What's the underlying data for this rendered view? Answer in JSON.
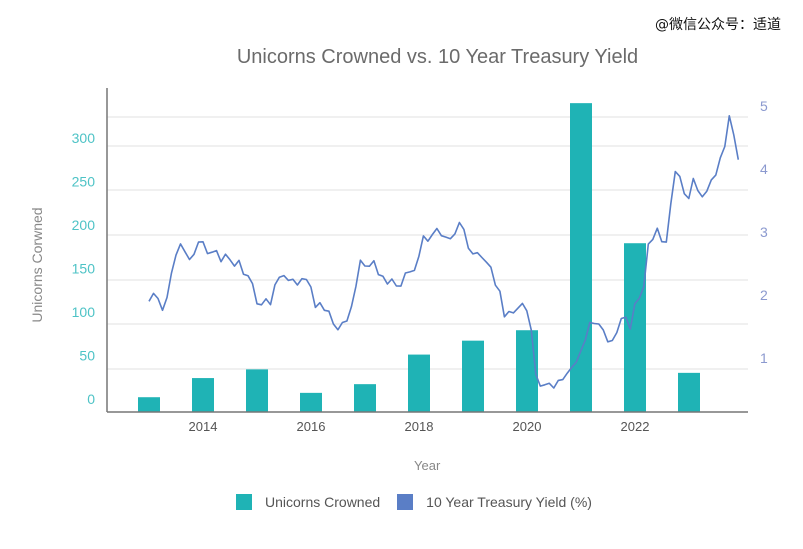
{
  "watermark": "@微信公众号：适道",
  "chart_data": {
    "type": "bar+line",
    "title": "Unicorns Crowned vs. 10 Year Treasury Yield",
    "xlabel": "Year",
    "ylabel": "Unicorns Corwned",
    "xticks": [
      2014,
      2016,
      2018,
      2020,
      2022
    ],
    "y_left_ticks": [
      0,
      50,
      100,
      150,
      200,
      250,
      300
    ],
    "y_right_ticks": [
      1,
      2,
      3,
      4,
      5
    ],
    "ylim_left": [
      0,
      355
    ],
    "ylim_right": [
      0,
      5.2
    ],
    "colors": {
      "bars": "#1fb3b5",
      "line": "#5a7ec6",
      "left_ticks": "#4ec3c6",
      "right_ticks": "#8b99cf"
    },
    "legend": {
      "position": "bottom",
      "entries": [
        "Unicorns Crowned",
        "10 Year Treasury Yield (%)"
      ]
    },
    "bars": {
      "name": "Unicorns Crowned",
      "years": [
        2013,
        2014,
        2015,
        2016,
        2017,
        2018,
        2019,
        2020,
        2021,
        2022,
        2023
      ],
      "values": [
        17,
        39,
        49,
        22,
        32,
        66,
        82,
        94,
        355,
        194,
        45
      ]
    },
    "line": {
      "name": "10 Year Treasury Yield (%)",
      "start": 2013.0,
      "step_years": 0.0833,
      "values": [
        1.9,
        2.0,
        1.9,
        1.7,
        1.9,
        2.3,
        2.6,
        2.8,
        2.7,
        2.6,
        2.7,
        2.9,
        2.9,
        2.7,
        2.7,
        2.7,
        2.5,
        2.6,
        2.5,
        2.4,
        2.5,
        2.3,
        2.3,
        2.2,
        1.9,
        1.9,
        2.0,
        1.9,
        2.2,
        2.3,
        2.3,
        2.2,
        2.2,
        2.1,
        2.2,
        2.2,
        2.1,
        1.8,
        1.9,
        1.8,
        1.8,
        1.6,
        1.5,
        1.6,
        1.6,
        1.8,
        2.1,
        2.5,
        2.4,
        2.4,
        2.5,
        2.3,
        2.3,
        2.2,
        2.3,
        2.2,
        2.2,
        2.4,
        2.4,
        2.4,
        2.6,
        2.9,
        2.8,
        2.9,
        3.0,
        2.9,
        2.9,
        2.9,
        3.0,
        3.2,
        3.1,
        2.8,
        2.7,
        2.7,
        2.6,
        2.5,
        2.4,
        2.1,
        2.0,
        1.6,
        1.7,
        1.7,
        1.8,
        1.9,
        1.8,
        1.5,
        0.8,
        0.6,
        0.6,
        0.6,
        0.5,
        0.6,
        0.6,
        0.7,
        0.8,
        0.9,
        1.1,
        1.3,
        1.6,
        1.6,
        1.6,
        1.5,
        1.3,
        1.3,
        1.4,
        1.6,
        1.6,
        1.4,
        1.8,
        1.9,
        2.1,
        2.8,
        2.9,
        3.1,
        2.9,
        2.9,
        3.5,
        4.0,
        3.9,
        3.6,
        3.5,
        3.8,
        3.6,
        3.5,
        3.6,
        3.8,
        3.9,
        4.2,
        4.4,
        4.9,
        4.6,
        4.2
      ]
    }
  }
}
